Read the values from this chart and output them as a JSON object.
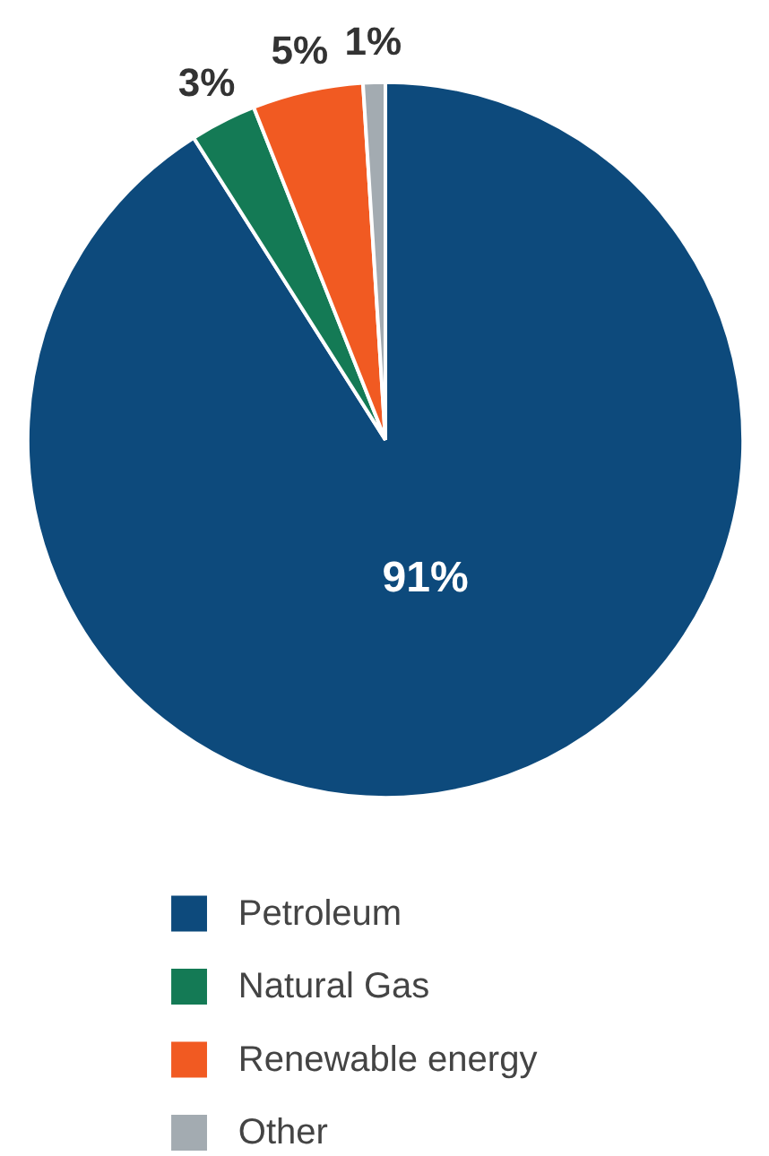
{
  "chart_data": {
    "type": "pie",
    "categories": [
      "Petroleum",
      "Natural Gas",
      "Renewable energy",
      "Other"
    ],
    "values": [
      91,
      3,
      5,
      1
    ],
    "colors": [
      "#0d4a7c",
      "#147a55",
      "#f15a22",
      "#a3abb1"
    ],
    "value_labels": [
      "91%",
      "3%",
      "5%",
      "1%"
    ],
    "legend": "bottom"
  }
}
